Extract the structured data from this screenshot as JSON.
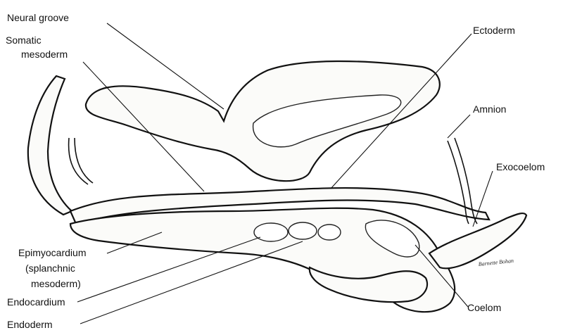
{
  "labels": {
    "neural_groove": "Neural groove",
    "somatic_line1": "Somatic",
    "somatic_line2": "mesoderm",
    "ectoderm": "Ectoderm",
    "amnion": "Amnion",
    "exocoelom": "Exocoelom",
    "epimyo_line1": "Epimyocardium",
    "epimyo_line2": "(splanchnic",
    "epimyo_line3": "mesoderm)",
    "endocardium": "Endocardium",
    "endoderm": "Endoderm",
    "coelom": "Coelom"
  },
  "signature": "Barnette Bohan",
  "colors": {
    "ink": "#111111",
    "paper": "#ffffff"
  }
}
